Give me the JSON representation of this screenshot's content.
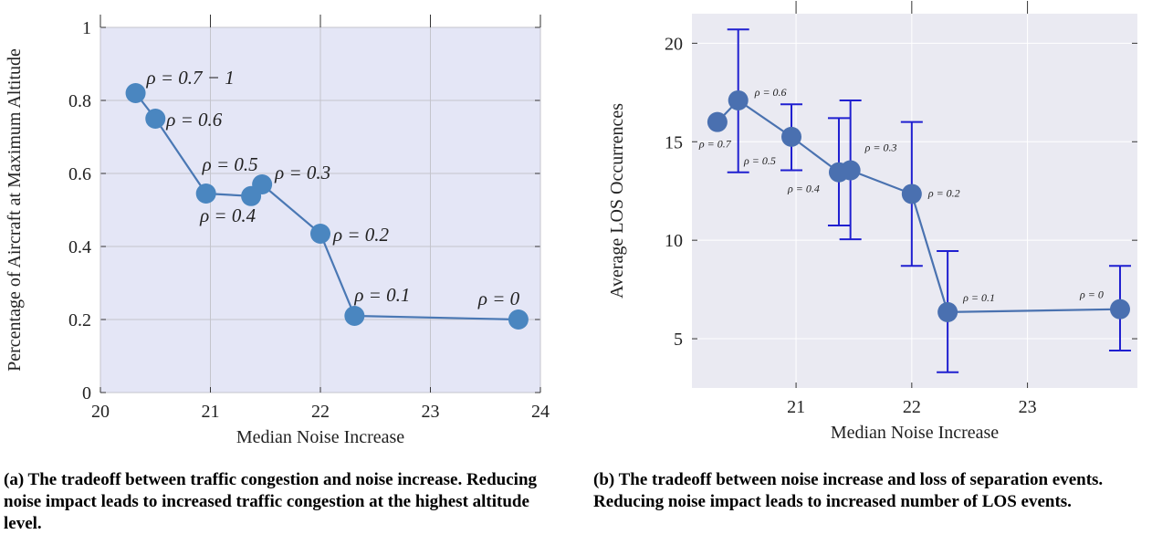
{
  "chart_data": [
    {
      "type": "line",
      "xlabel": "Median Noise Increase",
      "ylabel": "Percentage of Aircraft at Maximum Altitude",
      "xlim": [
        20,
        24
      ],
      "ylim": [
        0,
        1
      ],
      "xticks": [
        "20",
        "21",
        "22",
        "23",
        "24"
      ],
      "yticks": [
        "0",
        "0.2",
        "0.4",
        "0.6",
        "0.8",
        "1"
      ],
      "grid": true,
      "colors": {
        "background": "#e4e6f6",
        "line": "#4a78b4",
        "marker": "#4a86c0",
        "grid": "#c4c4cc"
      },
      "series": [
        {
          "points": [
            {
              "x": 20.32,
              "y": 0.82,
              "label": "ρ = 0.7 − 1"
            },
            {
              "x": 20.5,
              "y": 0.75,
              "label": "ρ = 0.6"
            },
            {
              "x": 20.96,
              "y": 0.545,
              "label": "ρ = 0.5"
            },
            {
              "x": 21.37,
              "y": 0.538,
              "label": "ρ = 0.4"
            },
            {
              "x": 21.47,
              "y": 0.57,
              "label": "ρ = 0.3"
            },
            {
              "x": 22.0,
              "y": 0.435,
              "label": "ρ = 0.2"
            },
            {
              "x": 22.31,
              "y": 0.21,
              "label": "ρ = 0.1"
            },
            {
              "x": 23.8,
              "y": 0.2,
              "label": "ρ = 0"
            }
          ]
        }
      ]
    },
    {
      "type": "line",
      "xlabel": "Median Noise Increase",
      "ylabel": "Average LOS Occurrences",
      "xlim": [
        20.1,
        23.95
      ],
      "ylim": [
        2.5,
        21.5
      ],
      "xticks": [
        "21",
        "22",
        "23"
      ],
      "yticks": [
        "5",
        "10",
        "15",
        "20"
      ],
      "grid": true,
      "error_bars": true,
      "colors": {
        "background": "#eaeaf2",
        "line": "#4a72b0",
        "marker": "#4a70b0",
        "errorbar": "#1f1fd0",
        "grid": "#ffffff"
      },
      "series": [
        {
          "points": [
            {
              "x": 20.32,
              "y": 16.0,
              "err": null,
              "label": "ρ = 0.7"
            },
            {
              "x": 20.5,
              "y": 17.1,
              "err": [
                13.45,
                20.7
              ],
              "label": "ρ = 0.6"
            },
            {
              "x": 20.96,
              "y": 15.25,
              "err": [
                13.55,
                16.9
              ],
              "label": "ρ = 0.5"
            },
            {
              "x": 21.37,
              "y": 13.45,
              "err": [
                10.75,
                16.2
              ],
              "label": "ρ = 0.4"
            },
            {
              "x": 21.47,
              "y": 13.55,
              "err": [
                10.05,
                17.1
              ],
              "label": "ρ = 0.3"
            },
            {
              "x": 22.0,
              "y": 12.35,
              "err": [
                8.7,
                16.0
              ],
              "label": "ρ = 0.2"
            },
            {
              "x": 22.31,
              "y": 6.35,
              "err": [
                3.3,
                9.45
              ],
              "label": "ρ = 0.1"
            },
            {
              "x": 23.8,
              "y": 6.5,
              "err": [
                4.4,
                8.7
              ],
              "label": "ρ = 0"
            }
          ]
        }
      ]
    }
  ],
  "captions": {
    "a": "(a) The tradeoff between traffic congestion and noise increase. Reducing noise impact leads to increased traffic congestion at the highest altitude level.",
    "b": "(b) The tradeoff between noise increase and loss of separation events. Reducing noise impact leads to increased number of LOS events."
  }
}
